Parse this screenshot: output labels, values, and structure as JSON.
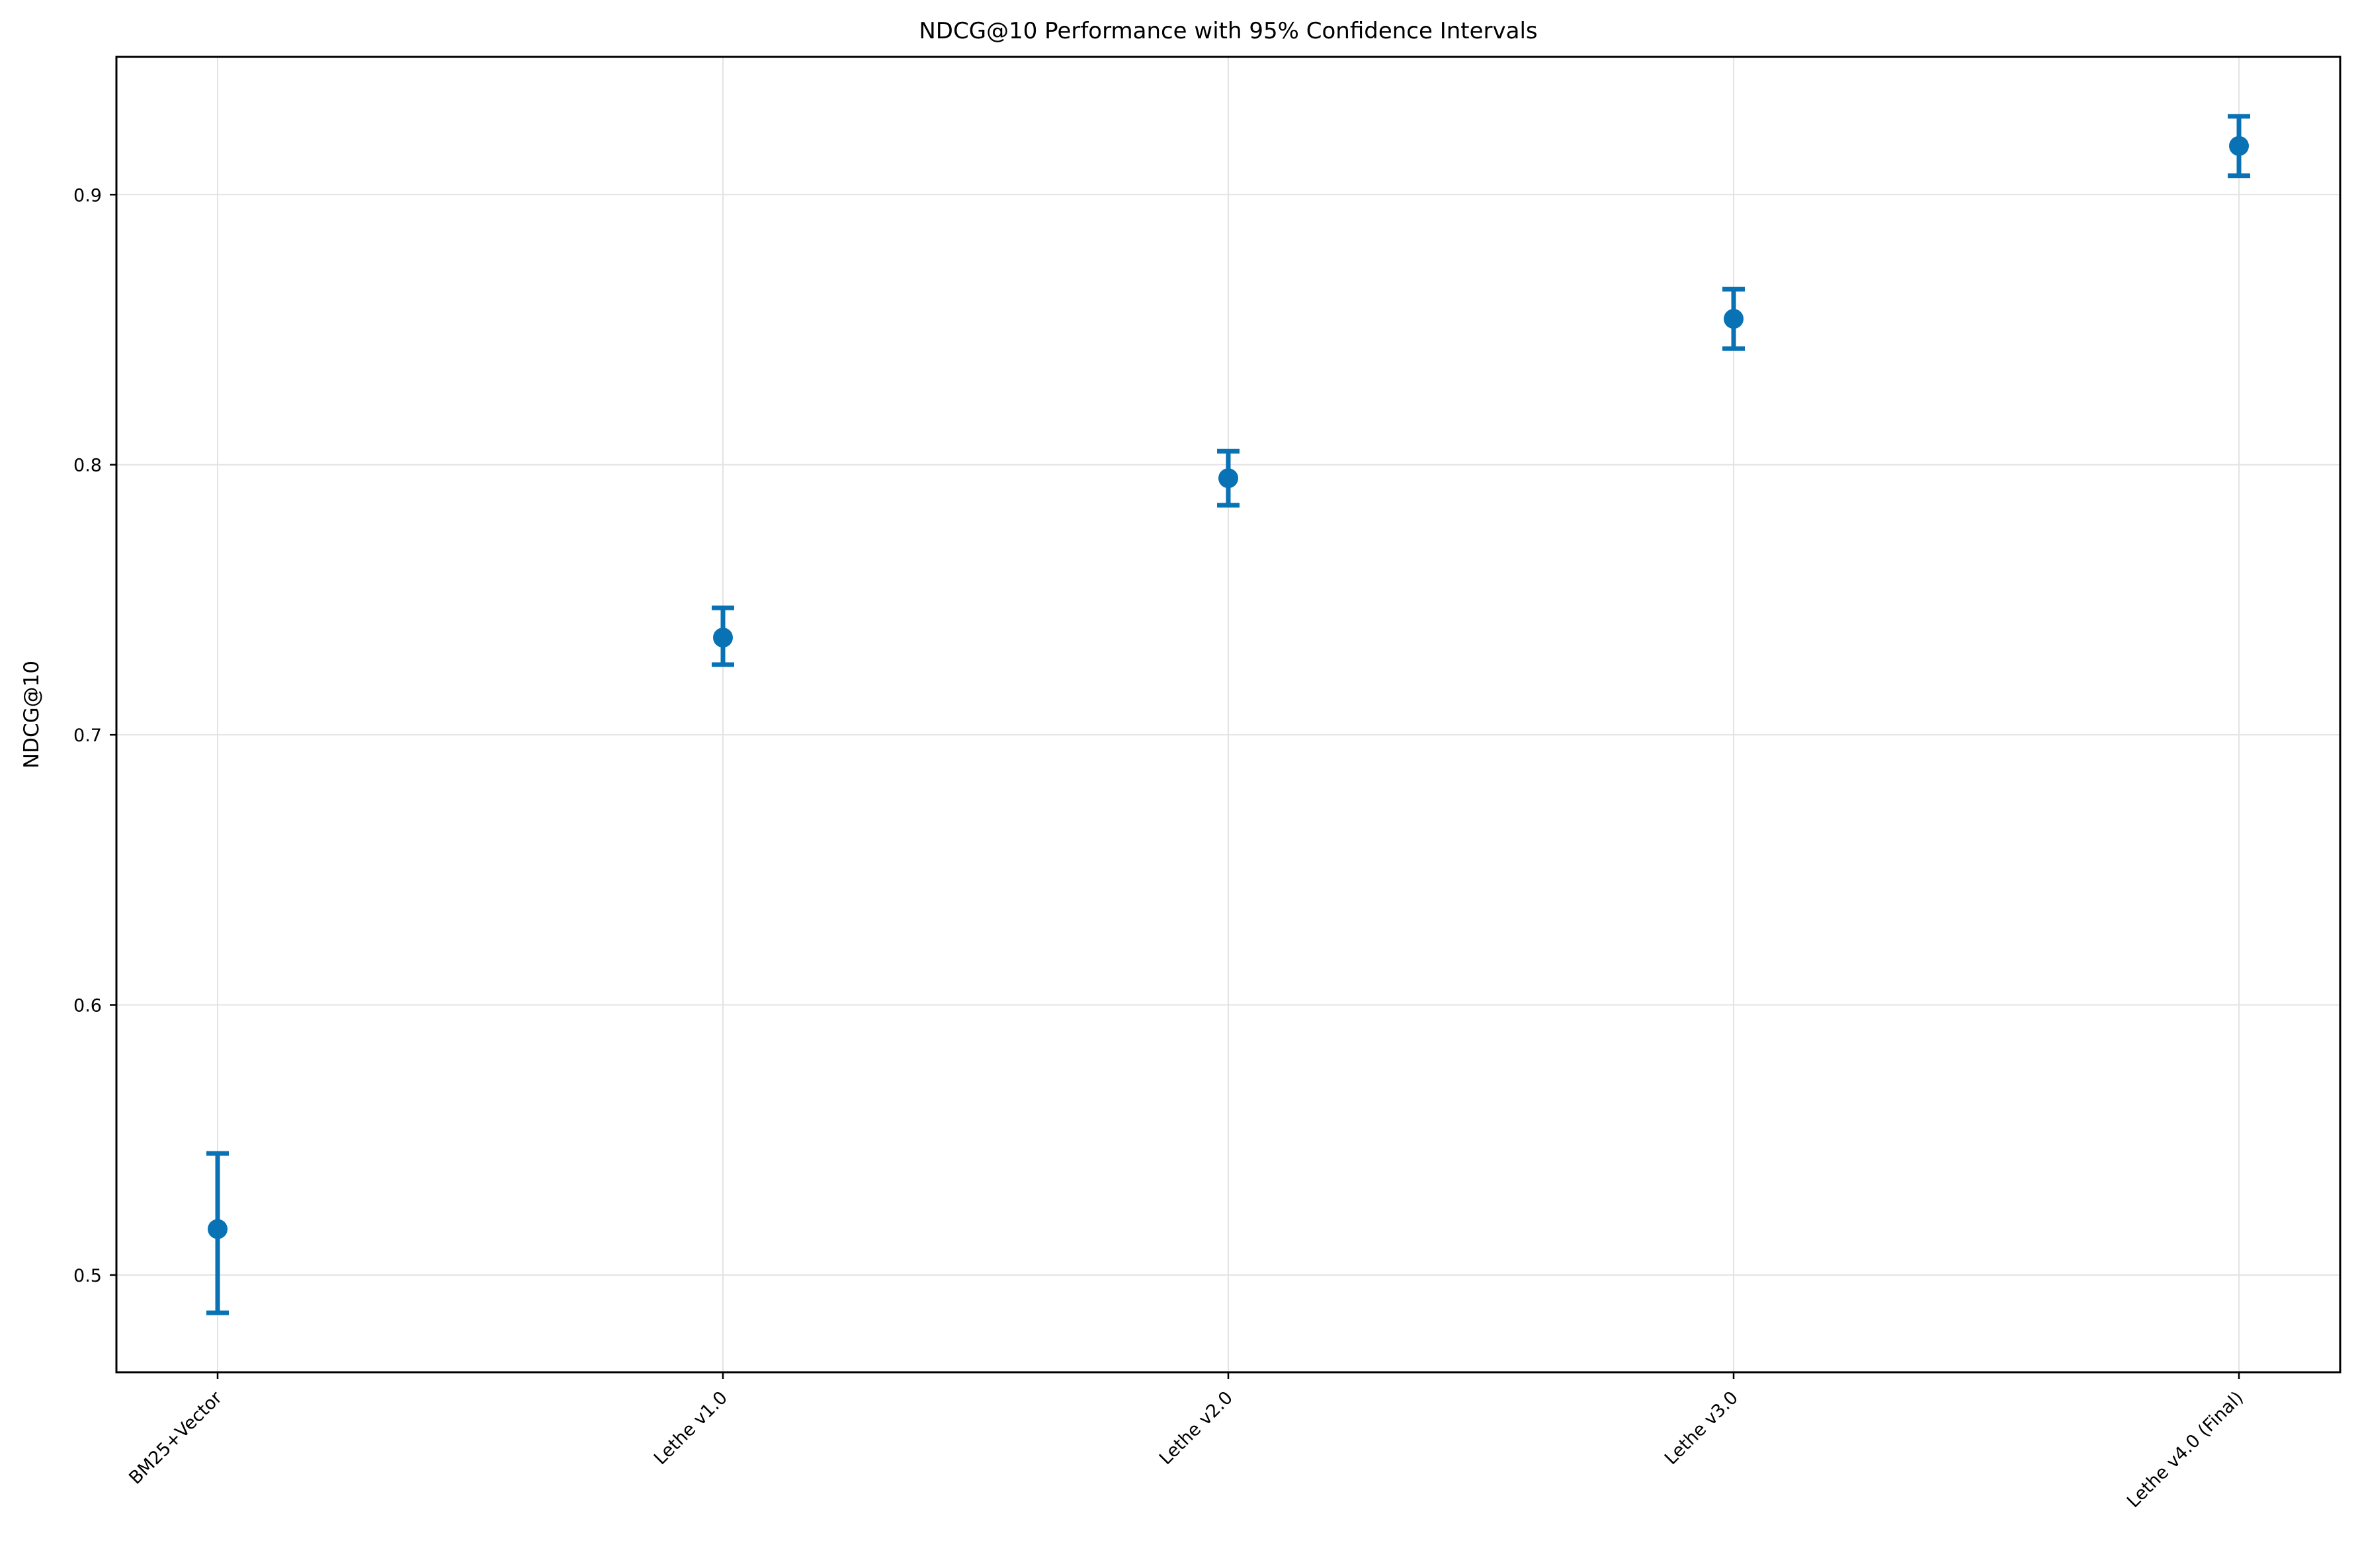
{
  "chart_data": {
    "type": "scatter",
    "title": "NDCG@10 Performance with 95% Confidence Intervals",
    "xlabel": "",
    "ylabel": "NDCG@10",
    "categories": [
      "BM25+Vector",
      "Lethe v1.0",
      "Lethe v2.0",
      "Lethe v3.0",
      "Lethe v4.0 (Final)"
    ],
    "values": [
      0.517,
      0.736,
      0.795,
      0.854,
      0.918
    ],
    "ci_lower": [
      0.486,
      0.726,
      0.785,
      0.843,
      0.907
    ],
    "ci_upper": [
      0.545,
      0.747,
      0.805,
      0.865,
      0.929
    ],
    "ylim": [
      0.464,
      0.951
    ],
    "yticks": [
      0.5,
      0.6,
      0.7,
      0.8,
      0.9
    ],
    "ytick_labels": [
      "0.5",
      "0.6",
      "0.7",
      "0.8",
      "0.9"
    ],
    "grid": true,
    "marker_color": "#0872b5",
    "grid_color": "#e3e3e3"
  }
}
